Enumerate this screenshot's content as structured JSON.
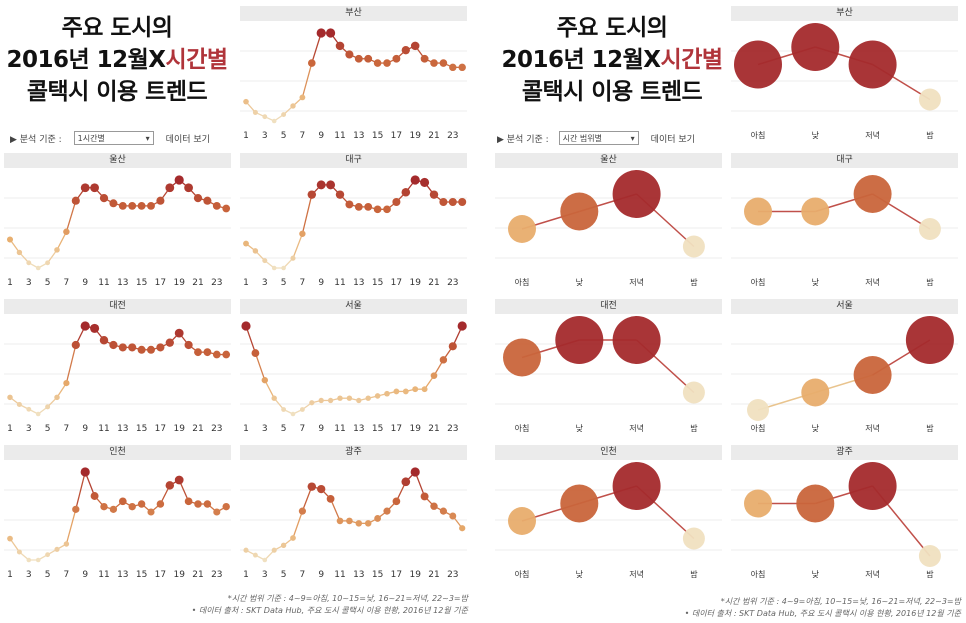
{
  "colors": {
    "c1": "#f0e0c0",
    "c2": "#e8ad6d",
    "c3": "#c9653b",
    "c4": "#a42a2c",
    "line_light": "#e9c48e",
    "line_dark": "#c0504a"
  },
  "left": {
    "title": {
      "line1": "주요 도시의",
      "line2_pre": "2016년 12월X",
      "line2_hl": "시간별",
      "line3": "콜택시 이용 트렌드"
    },
    "control": {
      "label": "▶ 분석 기준 :",
      "select": "1시간별",
      "link": "데이터 보기"
    }
  },
  "right": {
    "title": {
      "line1": "주요 도시의",
      "line2_pre": "2016년 12월X",
      "line2_hl": "시간별",
      "line3": "콜택시 이용 트렌드"
    },
    "control": {
      "label": "▶ 분석 기준 :",
      "select": "시간 범위별",
      "link": "데이터 보기"
    }
  },
  "footnotes": {
    "line1": "*시간 범위 기준 : 4~9=아침, 10~15=낮, 16~21=저녁, 22~3=밤",
    "line2": "• 데이터 출처 : SKT Data Hub, 주요 도시 콜택시 이용 현황, 2016년 12월 기준"
  },
  "chart_data": [
    {
      "type": "line",
      "panel": "left",
      "city": "부산",
      "x_ticks": [
        "1",
        "3",
        "5",
        "7",
        "9",
        "11",
        "13",
        "15",
        "17",
        "19",
        "21",
        "23"
      ],
      "x": [
        0,
        1,
        2,
        3,
        4,
        5,
        6,
        7,
        8,
        9,
        10,
        11,
        12,
        13,
        14,
        15,
        16,
        17,
        18,
        19,
        20,
        21,
        22,
        23
      ],
      "values": [
        12,
        7,
        5,
        3,
        6,
        10,
        14,
        30,
        44,
        44,
        38,
        34,
        32,
        32,
        30,
        30,
        32,
        36,
        38,
        32,
        30,
        30,
        28,
        28
      ]
    },
    {
      "type": "line",
      "panel": "left",
      "city": "울산",
      "x_ticks": [
        "1",
        "3",
        "5",
        "7",
        "9",
        "11",
        "13",
        "15",
        "17",
        "19",
        "21",
        "23"
      ],
      "x": [
        0,
        1,
        2,
        3,
        4,
        5,
        6,
        7,
        8,
        9,
        10,
        11,
        12,
        13,
        14,
        15,
        16,
        17,
        18,
        19,
        20,
        21,
        22,
        23
      ],
      "values": [
        21,
        16,
        12,
        10,
        12,
        17,
        24,
        36,
        41,
        41,
        37,
        35,
        34,
        34,
        34,
        34,
        36,
        41,
        44,
        41,
        37,
        36,
        34,
        33
      ]
    },
    {
      "type": "line",
      "panel": "left",
      "city": "대구",
      "x_ticks": [
        "1",
        "3",
        "5",
        "7",
        "9",
        "11",
        "13",
        "15",
        "17",
        "19",
        "21",
        "23"
      ],
      "x": [
        0,
        1,
        2,
        3,
        4,
        5,
        6,
        7,
        8,
        9,
        10,
        11,
        12,
        13,
        14,
        15,
        16,
        17,
        18,
        19,
        20,
        21,
        22,
        23
      ],
      "values": [
        20,
        17,
        13,
        10,
        10,
        14,
        24,
        40,
        44,
        44,
        40,
        36,
        35,
        35,
        34,
        34,
        37,
        41,
        46,
        45,
        40,
        37,
        37,
        37
      ]
    },
    {
      "type": "line",
      "panel": "left",
      "city": "대전",
      "x_ticks": [
        "1",
        "3",
        "5",
        "7",
        "9",
        "11",
        "13",
        "15",
        "17",
        "19",
        "21",
        "23"
      ],
      "x": [
        0,
        1,
        2,
        3,
        4,
        5,
        6,
        7,
        8,
        9,
        10,
        11,
        12,
        13,
        14,
        15,
        16,
        17,
        18,
        19,
        20,
        21,
        22,
        23
      ],
      "values": [
        14,
        11,
        9,
        7,
        10,
        14,
        20,
        36,
        44,
        43,
        38,
        36,
        35,
        35,
        34,
        34,
        35,
        37,
        41,
        36,
        33,
        33,
        32,
        32
      ]
    },
    {
      "type": "line",
      "panel": "left",
      "city": "서울",
      "x_ticks": [
        "1",
        "3",
        "5",
        "7",
        "9",
        "11",
        "13",
        "15",
        "17",
        "19",
        "21",
        "23"
      ],
      "x": [
        0,
        1,
        2,
        3,
        4,
        5,
        6,
        7,
        8,
        9,
        10,
        11,
        12,
        13,
        14,
        15,
        16,
        17,
        18,
        19,
        20,
        21,
        22,
        23
      ],
      "values": [
        44,
        32,
        20,
        12,
        7,
        5,
        7,
        10,
        11,
        11,
        12,
        12,
        11,
        12,
        13,
        14,
        15,
        15,
        16,
        16,
        22,
        29,
        35,
        44
      ]
    },
    {
      "type": "line",
      "panel": "left",
      "city": "인천",
      "x_ticks": [
        "1",
        "3",
        "5",
        "7",
        "9",
        "11",
        "13",
        "15",
        "17",
        "19",
        "21",
        "23"
      ],
      "x": [
        0,
        1,
        2,
        3,
        4,
        5,
        6,
        7,
        8,
        9,
        10,
        11,
        12,
        13,
        14,
        15,
        16,
        17,
        18,
        19,
        20,
        21,
        22,
        23
      ],
      "values": [
        20,
        15,
        12,
        12,
        14,
        16,
        18,
        31,
        45,
        36,
        32,
        31,
        34,
        32,
        33,
        30,
        33,
        40,
        42,
        34,
        33,
        33,
        30,
        32
      ]
    },
    {
      "type": "line",
      "panel": "left",
      "city": "광주",
      "x_ticks": [
        "1",
        "3",
        "5",
        "7",
        "9",
        "11",
        "13",
        "15",
        "17",
        "19",
        "21",
        "23"
      ],
      "x": [
        0,
        1,
        2,
        3,
        4,
        5,
        6,
        7,
        8,
        9,
        10,
        11,
        12,
        13,
        14,
        15,
        16,
        17,
        18,
        19,
        20,
        21,
        22,
        23
      ],
      "values": [
        15,
        13,
        11,
        15,
        17,
        20,
        31,
        41,
        40,
        36,
        27,
        27,
        26,
        26,
        28,
        31,
        35,
        43,
        47,
        37,
        33,
        31,
        29,
        24
      ]
    },
    {
      "type": "bubble",
      "panel": "right",
      "city": "부산",
      "categories": [
        "아침",
        "낮",
        "저녁",
        "밤"
      ],
      "values": [
        3,
        4,
        3,
        1
      ],
      "sizes": [
        4,
        4,
        4,
        1
      ]
    },
    {
      "type": "bubble",
      "panel": "right",
      "city": "울산",
      "categories": [
        "아침",
        "낮",
        "저녁",
        "밤"
      ],
      "values": [
        2,
        3,
        4,
        1
      ],
      "sizes": [
        2,
        3,
        4,
        1
      ]
    },
    {
      "type": "bubble",
      "panel": "right",
      "city": "대구",
      "categories": [
        "아침",
        "낮",
        "저녁",
        "밤"
      ],
      "values": [
        3,
        3,
        4,
        2
      ],
      "sizes": [
        2,
        2,
        3,
        1
      ]
    },
    {
      "type": "bubble",
      "panel": "right",
      "city": "대전",
      "categories": [
        "아침",
        "낮",
        "저녁",
        "밤"
      ],
      "values": [
        3,
        4,
        4,
        1
      ],
      "sizes": [
        3,
        4,
        4,
        1
      ]
    },
    {
      "type": "bubble",
      "panel": "right",
      "city": "서울",
      "categories": [
        "아침",
        "낮",
        "저녁",
        "밤"
      ],
      "values": [
        0,
        1,
        2,
        4
      ],
      "sizes": [
        1,
        2,
        3,
        4
      ]
    },
    {
      "type": "bubble",
      "panel": "right",
      "city": "인천",
      "categories": [
        "아침",
        "낮",
        "저녁",
        "밤"
      ],
      "values": [
        2,
        3,
        4,
        1
      ],
      "sizes": [
        2,
        3,
        4,
        1
      ]
    },
    {
      "type": "bubble",
      "panel": "right",
      "city": "광주",
      "categories": [
        "아침",
        "낮",
        "저녁",
        "밤"
      ],
      "values": [
        3,
        3,
        4,
        0
      ],
      "sizes": [
        2,
        3,
        4,
        1
      ]
    }
  ]
}
